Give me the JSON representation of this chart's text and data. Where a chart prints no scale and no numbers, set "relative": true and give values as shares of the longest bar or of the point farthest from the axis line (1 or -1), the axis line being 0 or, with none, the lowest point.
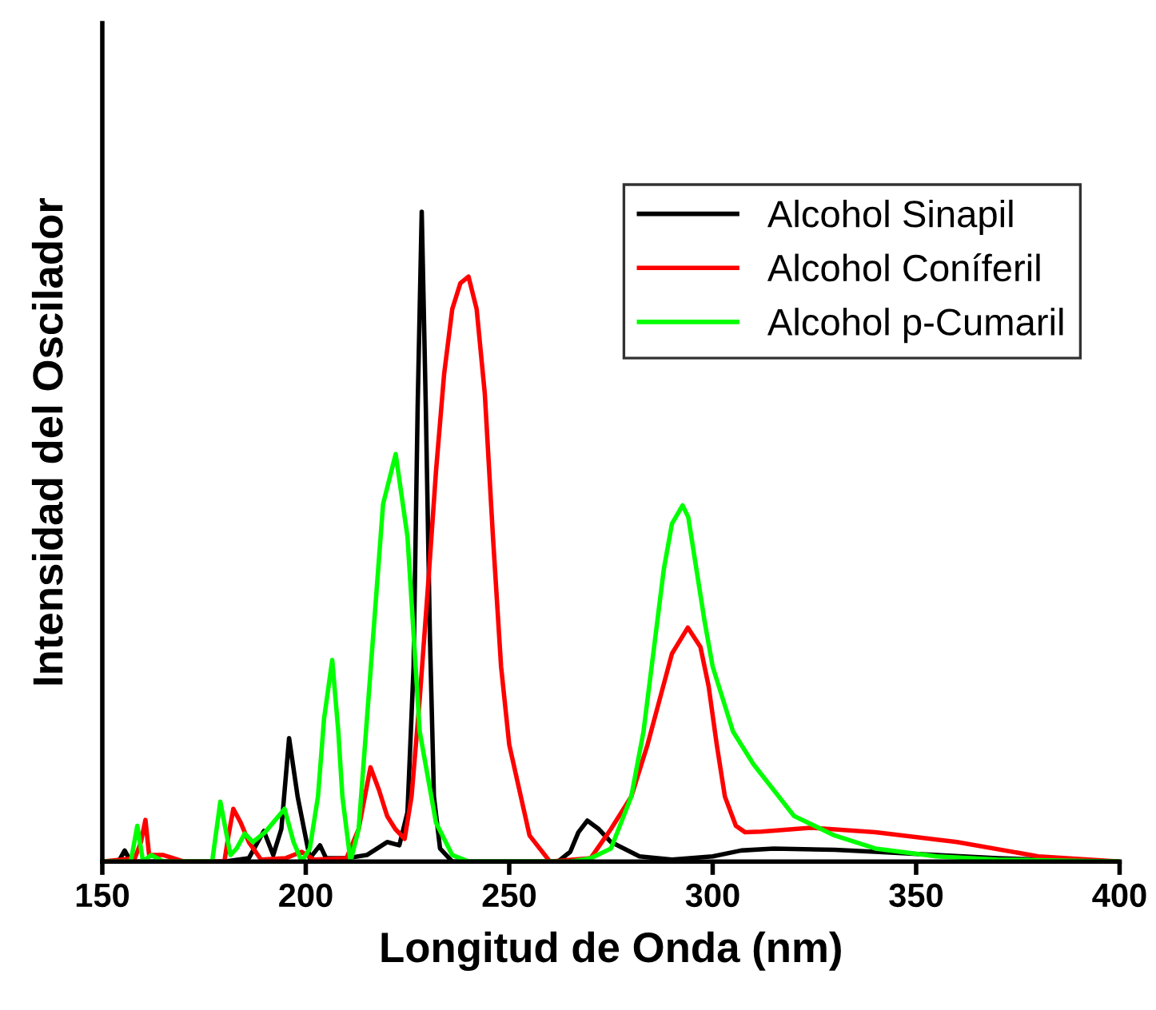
{
  "chart_data": {
    "type": "line",
    "relative": true,
    "xlabel": "Longitud de Onda (nm)",
    "ylabel": "Intensidad del Oscilador",
    "xlim": [
      150,
      400
    ],
    "xticks": [
      150,
      200,
      250,
      300,
      350,
      400
    ],
    "legend": "top right",
    "grid": false,
    "marker": "none",
    "line_style": "solid",
    "series": [
      {
        "name": "Alcohol Sinapil",
        "color": "#000000",
        "x": [
          150,
          154,
          155.5,
          157,
          180,
          186,
          189.7,
          192,
          194,
          195.9,
          198,
          201,
          203.5,
          205,
          210,
          215,
          220,
          223,
          225,
          226.5,
          227.5,
          228.5,
          229.5,
          230.5,
          231.5,
          233,
          236,
          262,
          265,
          267,
          269.2,
          272,
          275,
          282,
          290,
          300,
          307,
          315,
          330,
          340,
          355,
          370,
          385,
          400
        ],
        "values": [
          0,
          0,
          0.017,
          0,
          0,
          0.005,
          0.047,
          0.01,
          0.05,
          0.19,
          0.1,
          0.005,
          0.025,
          0.005,
          0.005,
          0.01,
          0.03,
          0.025,
          0.076,
          0.3,
          0.7,
          1,
          0.7,
          0.35,
          0.1,
          0.02,
          0,
          0,
          0.015,
          0.045,
          0.063,
          0.05,
          0.03,
          0.008,
          0.003,
          0.008,
          0.017,
          0.02,
          0.018,
          0.015,
          0.01,
          0.005,
          0.002,
          0
        ]
      },
      {
        "name": "Alcohol Coníferil",
        "color": "#ff0000",
        "x": [
          150,
          158,
          159.5,
          160.6,
          161.5,
          165,
          170,
          180,
          181,
          182.2,
          184,
          186,
          189,
          195,
          199,
          202,
          210,
          213,
          215.9,
          218,
          220,
          222,
          224.3,
          226,
          228,
          230,
          232,
          234,
          236,
          238,
          240,
          242,
          244,
          246,
          248,
          250,
          255,
          260,
          270,
          275,
          280,
          284,
          287,
          290,
          293.9,
          297,
          299,
          301,
          303,
          305.7,
          308,
          312,
          324,
          340,
          360,
          380,
          400
        ],
        "values": [
          0,
          0.005,
          0.03,
          0.064,
          0.01,
          0.01,
          0,
          0,
          0.04,
          0.081,
          0.06,
          0.03,
          0.003,
          0.005,
          0.015,
          0.003,
          0.005,
          0.05,
          0.145,
          0.11,
          0.07,
          0.05,
          0.035,
          0.1,
          0.25,
          0.42,
          0.6,
          0.75,
          0.85,
          0.89,
          0.9,
          0.85,
          0.72,
          0.5,
          0.3,
          0.18,
          0.04,
          0,
          0.005,
          0.05,
          0.1,
          0.18,
          0.25,
          0.32,
          0.36,
          0.33,
          0.27,
          0.18,
          0.1,
          0.055,
          0.045,
          0.046,
          0.052,
          0.045,
          0.03,
          0.008,
          0
        ]
      },
      {
        "name": "Alcohol p-Cumaril",
        "color": "#00ff00",
        "x": [
          150,
          157,
          158.6,
          160,
          162,
          165,
          177,
          179,
          181.5,
          183,
          185,
          187,
          190,
          192,
          194.8,
          197,
          199,
          201,
          203,
          204.5,
          206.5,
          208,
          209,
          211,
          213,
          216,
          219,
          222.1,
          225,
          228,
          232,
          236,
          240,
          265,
          270,
          275,
          280,
          283,
          286,
          288,
          290,
          292.6,
          294,
          296,
          298,
          300,
          305,
          310,
          320,
          330,
          340,
          355,
          370,
          400
        ],
        "values": [
          0,
          0,
          0.055,
          0,
          0.01,
          0,
          0,
          0.092,
          0.01,
          0.02,
          0.043,
          0.03,
          0.045,
          0.06,
          0.081,
          0.03,
          0,
          0.02,
          0.1,
          0.22,
          0.31,
          0.2,
          0.1,
          0,
          0.05,
          0.3,
          0.55,
          0.627,
          0.5,
          0.2,
          0.06,
          0.01,
          0,
          0,
          0.005,
          0.02,
          0.1,
          0.2,
          0.35,
          0.45,
          0.52,
          0.548,
          0.53,
          0.45,
          0.37,
          0.3,
          0.2,
          0.15,
          0.07,
          0.04,
          0.02,
          0.008,
          0.003,
          0
        ]
      }
    ]
  }
}
